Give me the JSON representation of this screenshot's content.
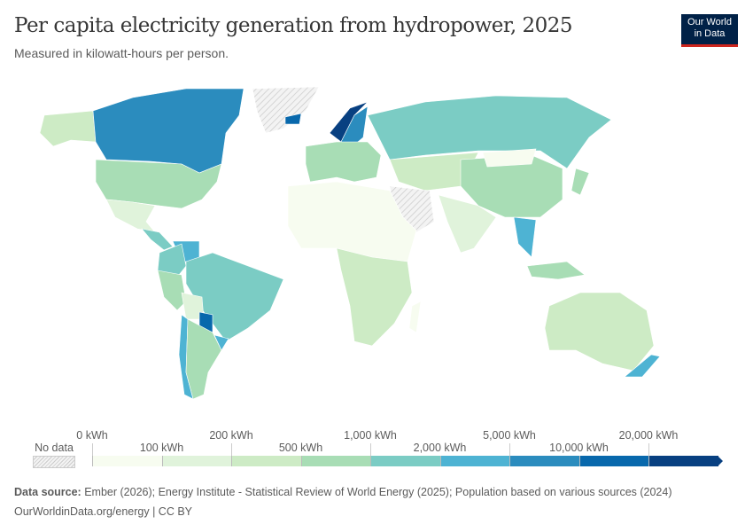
{
  "header": {
    "title": "Per capita electricity generation from hydropower, 2025",
    "subtitle": "Measured in kilowatt-hours per person.",
    "logo_line1": "Our World",
    "logo_line2": "in Data"
  },
  "map": {
    "type": "choropleth",
    "projection": "world",
    "no_data_pattern": "hatched-gray",
    "regions": [
      {
        "name": "Norway",
        "bin": "20,000+ kWh"
      },
      {
        "name": "Canada",
        "bin": "5,000–10,000 kWh"
      },
      {
        "name": "Sweden",
        "bin": "5,000–10,000 kWh"
      },
      {
        "name": "Paraguay",
        "bin": "10,000–20,000 kWh"
      },
      {
        "name": "Russia",
        "bin": "1,000–2,000 kWh"
      },
      {
        "name": "Brazil",
        "bin": "1,000–2,000 kWh"
      },
      {
        "name": "United States",
        "bin": "500–1,000 kWh"
      },
      {
        "name": "China",
        "bin": "500–1,000 kWh"
      },
      {
        "name": "Australia",
        "bin": "200–500 kWh"
      },
      {
        "name": "New Zealand",
        "bin": "2,000–5,000 kWh"
      },
      {
        "name": "Greenland",
        "bin": "No data"
      }
    ]
  },
  "legend": {
    "no_data_label": "No data",
    "labels_top": [
      "0 kWh",
      "200 kWh",
      "1,000 kWh",
      "5,000 kWh",
      "20,000 kWh"
    ],
    "labels_bottom": [
      "100 kWh",
      "500 kWh",
      "2,000 kWh",
      "10,000 kWh"
    ],
    "colors": [
      "#f7fcf0",
      "#e0f3db",
      "#cdebc5",
      "#a8ddb5",
      "#7bccc4",
      "#4eb3d3",
      "#2b8cbe",
      "#0868ac",
      "#084081"
    ]
  },
  "footer": {
    "source_label": "Data source:",
    "source_text": " Ember (2026); Energy Institute - Statistical Review of World Energy (2025); Population based on various sources (2024)",
    "url": "OurWorldinData.org/energy | CC BY"
  }
}
